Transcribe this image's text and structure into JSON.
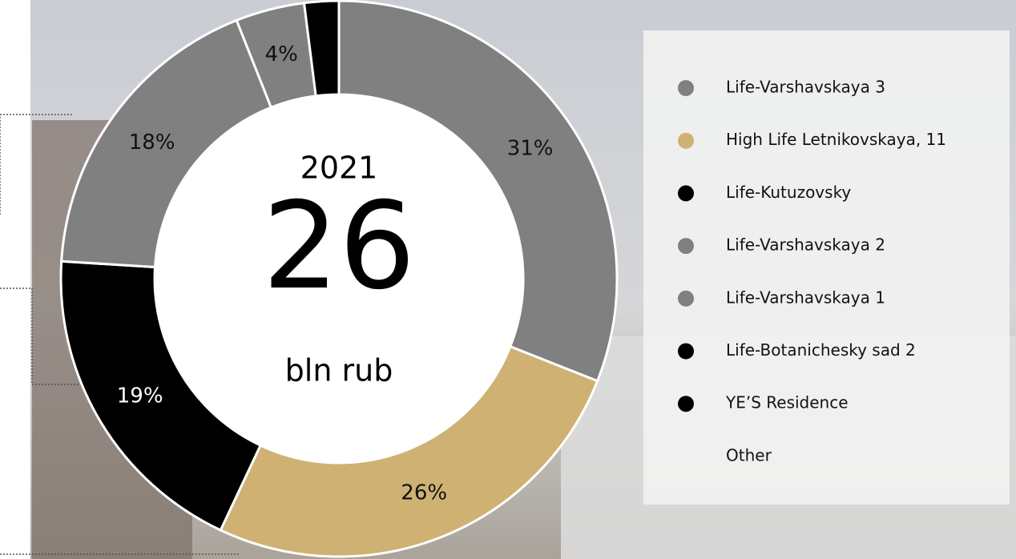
{
  "chart_data": {
    "type": "donut",
    "center_labels": [
      "2021",
      "26",
      "bln rub"
    ],
    "categories": [
      "Life-Varshavskaya 3",
      "High Life Letnikovskaya, 11",
      "Life-Kutuzovsky",
      "Life-Varshavskaya 2",
      "Life-Varshavskaya 1",
      "Life-Botanichesky sad 2",
      "YE’S Residence",
      "Other"
    ],
    "values": [
      31,
      26,
      19,
      18,
      4,
      2,
      null,
      null
    ],
    "value_labels": [
      "31%",
      "26%",
      "19%",
      "18%",
      "4%",
      null,
      null,
      null
    ],
    "colors": [
      "#808080",
      "#cfb173",
      "#000000",
      "#808080",
      "#808080",
      "#000000",
      "#000000",
      null
    ]
  }
}
